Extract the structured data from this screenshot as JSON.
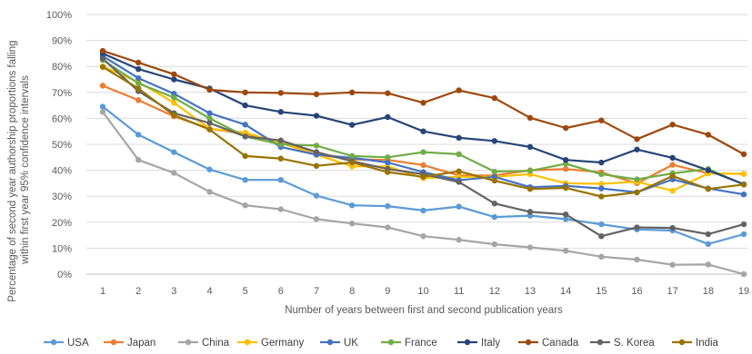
{
  "chart_data": {
    "type": "line",
    "xlabel": "Number of years between first and second publication years",
    "ylabel_lines": [
      "Percentage of second year authorship proportions falling",
      "within first year 95% confidence intervals"
    ],
    "ylim": [
      0,
      100
    ],
    "ytick_labels": [
      "0%",
      "10%",
      "20%",
      "30%",
      "40%",
      "50%",
      "60%",
      "70%",
      "80%",
      "90%",
      "100%"
    ],
    "x": [
      1,
      2,
      3,
      4,
      5,
      6,
      7,
      8,
      9,
      10,
      11,
      12,
      13,
      14,
      15,
      16,
      17,
      18,
      19
    ],
    "xtick_labels": [
      "1",
      "2",
      "3",
      "4",
      "5",
      "6",
      "7",
      "8",
      "9",
      "10",
      "11",
      "12",
      "13",
      "14",
      "15",
      "16",
      "17",
      "18",
      "19"
    ],
    "grid": true,
    "legend_position": "bottom",
    "series": [
      {
        "name": "USA",
        "color": "#5B9BD5",
        "values": [
          64.5,
          53.7,
          47.0,
          40.3,
          36.3,
          36.3,
          30.2,
          26.5,
          26.2,
          24.5,
          26.0,
          22.0,
          22.5,
          21.2,
          19.2,
          17.2,
          16.8,
          11.6,
          15.4
        ]
      },
      {
        "name": "Japan",
        "color": "#ED7D31",
        "values": [
          72.6,
          67.0,
          60.8,
          56.0,
          54.0,
          51.0,
          46.0,
          44.2,
          44.0,
          42.0,
          38.0,
          38.0,
          40.0,
          40.5,
          39.2,
          35.0,
          42.1,
          38.8,
          38.6
        ]
      },
      {
        "name": "China",
        "color": "#A5A5A5",
        "values": [
          62.5,
          44.0,
          39.0,
          31.7,
          26.5,
          25.0,
          21.2,
          19.5,
          18.0,
          14.6,
          13.2,
          11.5,
          10.3,
          9.0,
          6.7,
          5.6,
          3.6,
          3.7,
          0.0
        ]
      },
      {
        "name": "Germany",
        "color": "#FFC000",
        "values": [
          80.0,
          74.0,
          66.0,
          56.0,
          54.5,
          50.5,
          46.0,
          41.5,
          41.5,
          37.0,
          37.5,
          37.5,
          38.5,
          35.0,
          34.8,
          35.6,
          32.1,
          38.8,
          38.6
        ]
      },
      {
        "name": "UK",
        "color": "#4472C4",
        "values": [
          84.0,
          75.5,
          69.5,
          62.0,
          57.6,
          49.0,
          46.0,
          44.8,
          43.0,
          39.3,
          36.2,
          37.5,
          33.5,
          34.0,
          33.0,
          31.5,
          36.5,
          33.0,
          30.7
        ]
      },
      {
        "name": "France",
        "color": "#70AD47",
        "values": [
          82.5,
          73.5,
          68.0,
          60.0,
          53.0,
          50.0,
          49.5,
          45.5,
          45.0,
          47.0,
          46.2,
          39.5,
          39.8,
          42.5,
          38.5,
          36.5,
          38.8,
          40.5,
          34.5
        ]
      },
      {
        "name": "Italy",
        "color": "#264478",
        "values": [
          85.0,
          79.0,
          75.0,
          71.5,
          65.0,
          62.5,
          61.0,
          57.5,
          60.5,
          55.0,
          52.5,
          51.3,
          49.0,
          44.0,
          43.0,
          48.0,
          44.8,
          40.0,
          34.6
        ]
      },
      {
        "name": "Canada",
        "color": "#9E480E",
        "values": [
          86.0,
          81.5,
          77.0,
          71.0,
          70.0,
          69.8,
          69.3,
          70.0,
          69.7,
          66.0,
          70.8,
          67.8,
          60.2,
          56.3,
          59.2,
          52.0,
          57.6,
          53.7,
          46.2
        ]
      },
      {
        "name": "S. Korea",
        "color": "#636363",
        "values": [
          83.0,
          70.5,
          62.0,
          58.2,
          53.0,
          51.5,
          47.0,
          43.5,
          40.5,
          38.5,
          35.5,
          27.2,
          24.0,
          23.0,
          14.6,
          18.0,
          17.8,
          15.4,
          19.2
        ]
      },
      {
        "name": "India",
        "color": "#997300",
        "values": [
          79.8,
          71.5,
          61.2,
          55.7,
          45.5,
          44.5,
          41.7,
          43.0,
          39.3,
          37.5,
          39.6,
          36.0,
          32.8,
          33.2,
          29.9,
          31.5,
          37.8,
          32.8,
          34.5
        ]
      }
    ]
  }
}
